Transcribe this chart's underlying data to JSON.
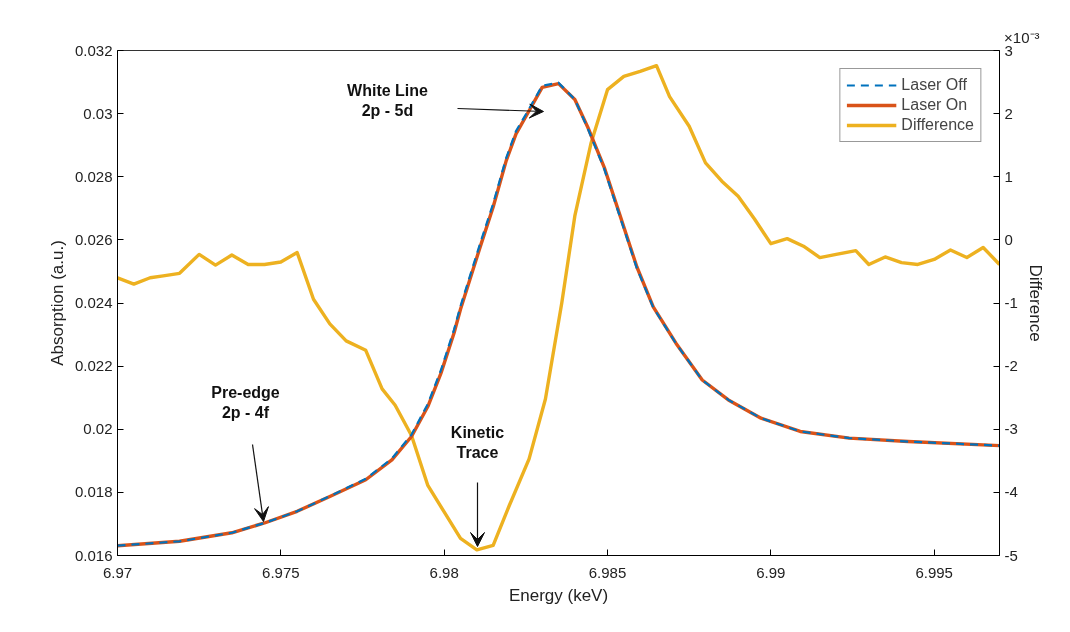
{
  "chart_data": {
    "type": "line",
    "xlabel": "Energy (keV)",
    "ylabel": "Absorption (a.u.)",
    "y2label": "Difference",
    "xlim": [
      6.97,
      6.997
    ],
    "xticks": [
      6.97,
      6.975,
      6.98,
      6.985,
      6.99,
      6.995
    ],
    "ylim": [
      0.016,
      0.032
    ],
    "yticks": [
      0.016,
      0.018,
      0.02,
      0.022,
      0.024,
      0.026,
      0.028,
      0.03,
      0.032
    ],
    "y2lim": [
      -5,
      3
    ],
    "y2ticks": [
      -5,
      -4,
      -3,
      -2,
      -1,
      0,
      1,
      2,
      3
    ],
    "legend": "top right",
    "grid": false,
    "series": [
      {
        "name": "Laser Off",
        "color": "#0072bd",
        "line_style": "dashed",
        "x": [
          6.97,
          6.9719,
          6.9735,
          6.9745,
          6.9755,
          6.9765,
          6.9776,
          6.9784,
          6.979,
          6.9795,
          6.9799,
          6.9803,
          6.9805,
          6.9811,
          6.9815,
          6.9819,
          6.9822,
          6.9826,
          6.983,
          6.9835,
          6.984,
          6.9844,
          6.9849,
          6.9854,
          6.9859,
          6.9864,
          6.9871,
          6.9879,
          6.9887,
          6.9897,
          6.9909,
          6.9924,
          6.9942,
          6.997
        ],
        "values": [
          0.01631,
          0.01645,
          0.01672,
          0.01703,
          0.0174,
          0.01788,
          0.01843,
          0.01907,
          0.01983,
          0.0208,
          0.02187,
          0.02315,
          0.0239,
          0.02588,
          0.02715,
          0.0286,
          0.02945,
          0.03015,
          0.03088,
          0.03098,
          0.03045,
          0.02952,
          0.02825,
          0.02667,
          0.0251,
          0.02386,
          0.02271,
          0.02156,
          0.02093,
          0.02035,
          0.01993,
          0.01972,
          0.01961,
          0.01948
        ]
      },
      {
        "name": "Laser On",
        "color": "#d95319",
        "line_style": "solid",
        "x": [
          6.97,
          6.9719,
          6.9735,
          6.9745,
          6.9755,
          6.9765,
          6.9776,
          6.9784,
          6.979,
          6.9795,
          6.9799,
          6.9803,
          6.9805,
          6.9811,
          6.9815,
          6.9819,
          6.9822,
          6.9826,
          6.983,
          6.9835,
          6.984,
          6.9844,
          6.9849,
          6.9854,
          6.9859,
          6.9864,
          6.9871,
          6.9879,
          6.9887,
          6.9897,
          6.9909,
          6.9924,
          6.9942,
          6.997
        ],
        "values": [
          0.01631,
          0.01645,
          0.01672,
          0.01703,
          0.0174,
          0.01787,
          0.0184,
          0.01903,
          0.01977,
          0.02072,
          0.02177,
          0.02304,
          0.0238,
          0.02577,
          0.02704,
          0.02851,
          0.02936,
          0.03009,
          0.03083,
          0.03095,
          0.03045,
          0.02956,
          0.0283,
          0.02672,
          0.02514,
          0.02388,
          0.02272,
          0.02156,
          0.02093,
          0.02035,
          0.01993,
          0.01972,
          0.01961,
          0.01948
        ]
      },
      {
        "name": "Difference",
        "color": "#edb120",
        "line_style": "solid",
        "axis": "y2",
        "x": [
          6.97,
          6.9705,
          6.971,
          6.9714,
          6.9719,
          6.9725,
          6.973,
          6.9735,
          6.974,
          6.9745,
          6.975,
          6.9755,
          6.976,
          6.9765,
          6.977,
          6.9776,
          6.9781,
          6.9785,
          6.979,
          6.9795,
          6.98,
          6.9805,
          6.981,
          6.9815,
          6.982,
          6.9826,
          6.9831,
          6.9836,
          6.984,
          6.9845,
          6.985,
          6.9855,
          6.986,
          6.9865,
          6.9869,
          6.9875,
          6.988,
          6.9885,
          6.989,
          6.9895,
          6.99,
          6.9905,
          6.991,
          6.9915,
          6.992,
          6.9926,
          6.993,
          6.9935,
          6.994,
          6.9945,
          6.995,
          6.9955,
          6.996,
          6.9965,
          6.997
        ],
        "values": [
          -0.6,
          -0.7,
          -0.6,
          -0.57,
          -0.53,
          -0.23,
          -0.4,
          -0.24,
          -0.39,
          -0.39,
          -0.35,
          -0.2,
          -0.94,
          -1.33,
          -1.6,
          -1.75,
          -2.36,
          -2.62,
          -3.1,
          -3.89,
          -4.31,
          -4.73,
          -4.91,
          -4.84,
          -4.2,
          -3.47,
          -2.52,
          -1.0,
          0.38,
          1.54,
          2.38,
          2.59,
          2.67,
          2.76,
          2.27,
          1.8,
          1.22,
          0.93,
          0.69,
          0.33,
          -0.06,
          0.02,
          -0.1,
          -0.28,
          -0.23,
          -0.17,
          -0.39,
          -0.27,
          -0.36,
          -0.39,
          -0.31,
          -0.16,
          -0.28,
          -0.12,
          -0.39
        ]
      }
    ],
    "annotations": [
      "White Line\n2p - 5d",
      "Pre-edge\n2p - 4f",
      "Kinetic\nTrace",
      "×10⁻³"
    ]
  }
}
